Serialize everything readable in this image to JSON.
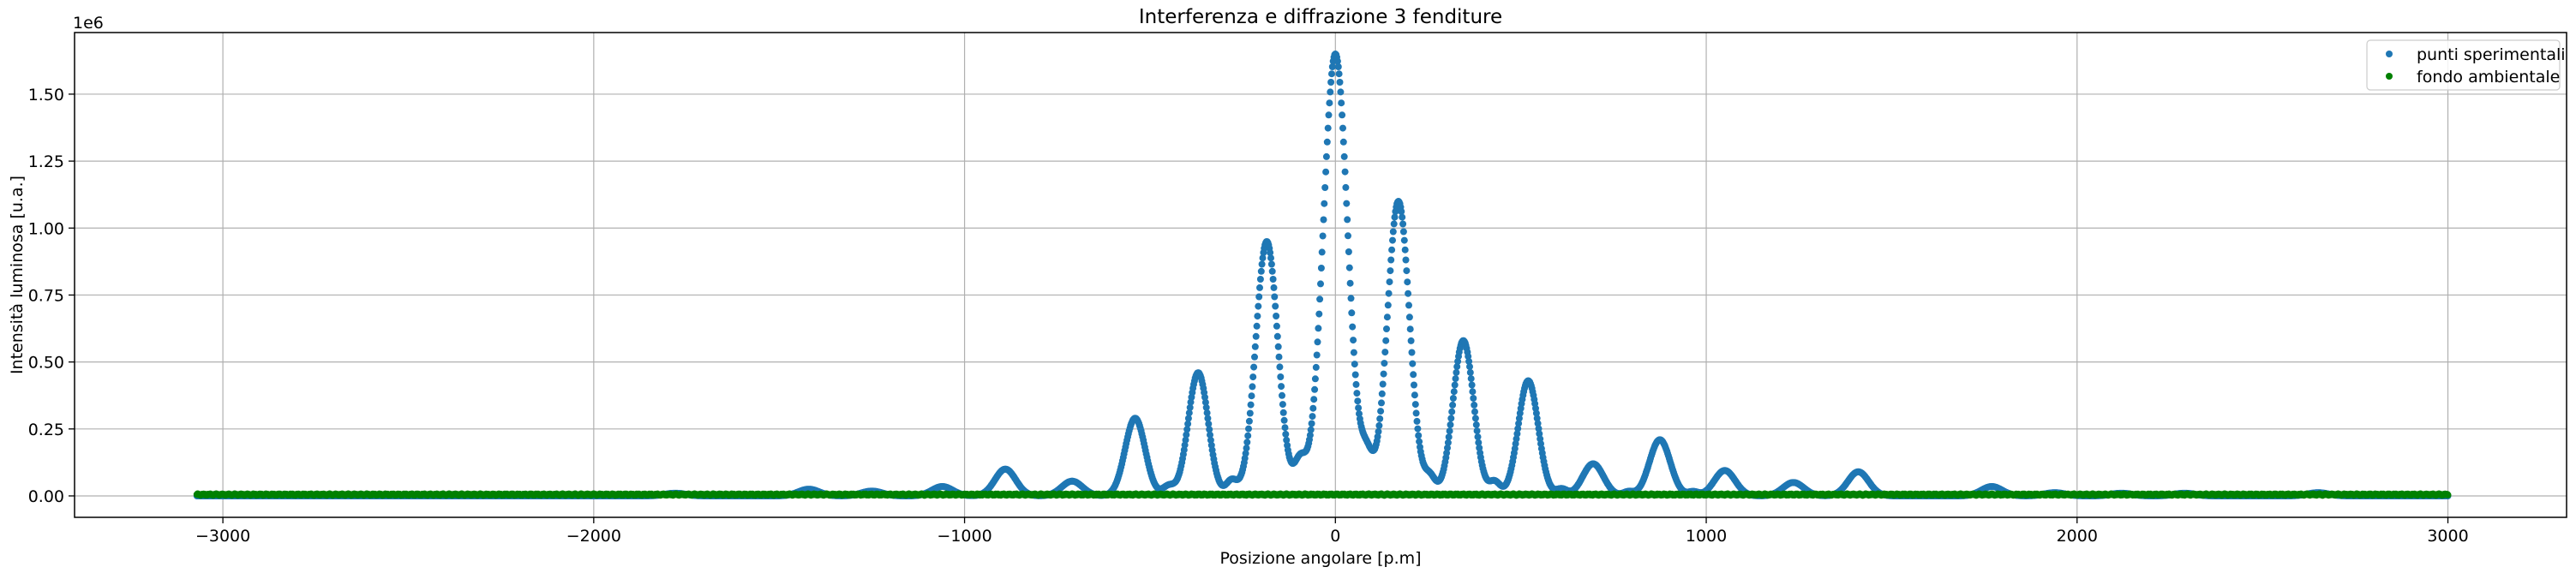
{
  "chart_data": {
    "type": "scatter",
    "title": "Interferenza e diffrazione 3 fenditure",
    "xlabel": "Posizione angolare [p.m]",
    "ylabel": "Intensità luminosa [u.a.]",
    "y_scale_label": "1e6",
    "xlim": [
      -3400,
      3320
    ],
    "ylim": [
      -80000,
      1730000
    ],
    "grid": true,
    "legend_position": "top-right",
    "x_ticks": [
      -3000,
      -2000,
      -1000,
      0,
      1000,
      2000,
      3000
    ],
    "x_tick_labels": [
      "−3000",
      "−2000",
      "−1000",
      "0",
      "1000",
      "2000",
      "3000"
    ],
    "y_ticks": [
      0,
      250000,
      500000,
      750000,
      1000000,
      1250000,
      1500000
    ],
    "y_tick_labels": [
      "0.00",
      "0.25",
      "0.50",
      "0.75",
      "1.00",
      "1.25",
      "1.50"
    ],
    "x_range": [
      -3070,
      3000
    ],
    "series": [
      {
        "name": "punti sperimentali",
        "color": "#1f77b4",
        "marker": "dot",
        "peaks": [
          {
            "x": -1420,
            "y": 25000,
            "w": 28
          },
          {
            "x": -1250,
            "y": 18000,
            "w": 28
          },
          {
            "x": -1060,
            "y": 35000,
            "w": 28
          },
          {
            "x": -890,
            "y": 100000,
            "w": 28
          },
          {
            "x": -710,
            "y": 55000,
            "w": 28
          },
          {
            "x": -540,
            "y": 290000,
            "w": 27
          },
          {
            "x": -450,
            "y": 35000,
            "w": 16
          },
          {
            "x": -370,
            "y": 460000,
            "w": 27
          },
          {
            "x": -280,
            "y": 55000,
            "w": 15
          },
          {
            "x": -185,
            "y": 950000,
            "w": 30
          },
          {
            "x": -95,
            "y": 120000,
            "w": 16
          },
          {
            "x": 0,
            "y": 1650000,
            "w": 33
          },
          {
            "x": 85,
            "y": 125000,
            "w": 16
          },
          {
            "x": 170,
            "y": 1100000,
            "w": 30
          },
          {
            "x": 255,
            "y": 65000,
            "w": 15
          },
          {
            "x": 345,
            "y": 580000,
            "w": 28
          },
          {
            "x": 430,
            "y": 50000,
            "w": 15
          },
          {
            "x": 520,
            "y": 430000,
            "w": 27
          },
          {
            "x": 610,
            "y": 25000,
            "w": 15
          },
          {
            "x": 695,
            "y": 120000,
            "w": 28
          },
          {
            "x": 790,
            "y": 15000,
            "w": 14
          },
          {
            "x": 875,
            "y": 210000,
            "w": 28
          },
          {
            "x": 965,
            "y": 15000,
            "w": 14
          },
          {
            "x": 1050,
            "y": 95000,
            "w": 28
          },
          {
            "x": 1235,
            "y": 50000,
            "w": 28
          },
          {
            "x": 1410,
            "y": 90000,
            "w": 28
          },
          {
            "x": 1770,
            "y": 35000,
            "w": 28
          },
          {
            "x": 1940,
            "y": 12000,
            "w": 28
          },
          {
            "x": 2120,
            "y": 10000,
            "w": 28
          },
          {
            "x": 2290,
            "y": 10000,
            "w": 28
          },
          {
            "x": 2650,
            "y": 12000,
            "w": 28
          },
          {
            "x": -1780,
            "y": 10000,
            "w": 28
          }
        ]
      },
      {
        "name": "fondo ambientale",
        "color": "#008000",
        "marker": "dot",
        "level": 5000
      }
    ]
  }
}
